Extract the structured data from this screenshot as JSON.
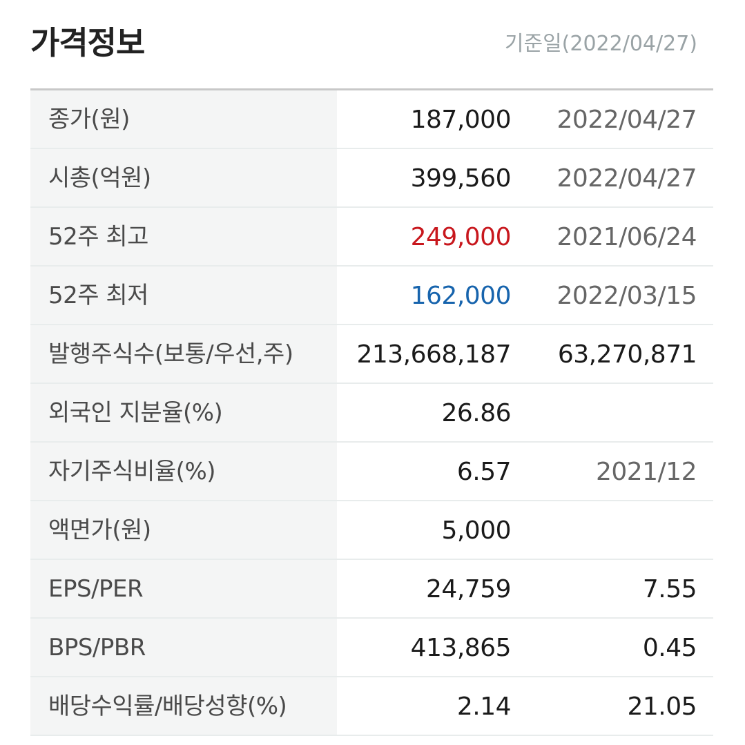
{
  "header": {
    "title": "가격정보",
    "base_date": "기준일(2022/04/27)"
  },
  "colors": {
    "high": "#c8171d",
    "low": "#1764ad",
    "label_bg": "#f4f5f5"
  },
  "rows": [
    {
      "label": "종가(원)",
      "value": "187,000",
      "extra": "2022/04/27"
    },
    {
      "label": "시총(억원)",
      "value": "399,560",
      "extra": "2022/04/27"
    },
    {
      "label": "52주 최고",
      "value": "249,000",
      "extra": "2021/06/24"
    },
    {
      "label": "52주 최저",
      "value": "162,000",
      "extra": "2022/03/15"
    },
    {
      "label": "발행주식수(보통/우선,주)",
      "value": "213,668,187",
      "extra": "63,270,871"
    },
    {
      "label": "외국인 지분율(%)",
      "value": "26.86",
      "extra": ""
    },
    {
      "label": "자기주식비율(%)",
      "value": "6.57",
      "extra": "2021/12"
    },
    {
      "label": "액면가(원)",
      "value": "5,000",
      "extra": ""
    },
    {
      "label": "EPS/PER",
      "value": "24,759",
      "extra": "7.55"
    },
    {
      "label": "BPS/PBR",
      "value": "413,865",
      "extra": "0.45"
    },
    {
      "label": "배당수익률/배당성향(%)",
      "value": "2.14",
      "extra": "21.05"
    }
  ]
}
